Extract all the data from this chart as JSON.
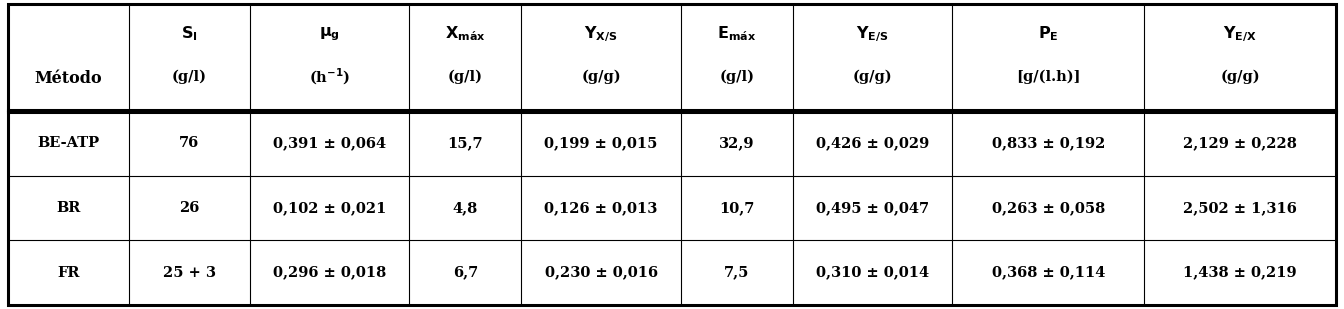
{
  "col_headers_line1_render": [
    "$\\mathbf{S_I}$",
    "$\\mathbf{\\mu_g}$",
    "$\\mathbf{X_{m\\acute{a}x}}$",
    "$\\mathbf{Y_{X/S}}$",
    "$\\mathbf{E_{m\\acute{a}x}}$",
    "$\\mathbf{Y_{E/S}}$",
    "$\\mathbf{P_E}$",
    "$\\mathbf{Y_{E/X}}$"
  ],
  "col_headers_line2": [
    "(g/l)",
    "(h$\\mathbf{^{-1}}$)",
    "(g/l)",
    "(g/g)",
    "(g/l)",
    "(g/g)",
    "[g/(l.h)]",
    "(g/g)"
  ],
  "row_labels": [
    "BE-ATP",
    "BR",
    "FR"
  ],
  "data": [
    [
      "76",
      "0,391 ± 0,064",
      "15,7",
      "0,199 ± 0,015",
      "32,9",
      "0,426 ± 0,029",
      "0,833 ± 0,192",
      "2,129 ± 0,228"
    ],
    [
      "26",
      "0,102 ± 0,021",
      "4,8",
      "0,126 ± 0,013",
      "10,7",
      "0,495 ± 0,047",
      "0,263 ± 0,058",
      "2,502 ± 1,316"
    ],
    [
      "25 + 3",
      "0,296 ± 0,018",
      "6,7",
      "0,230 ± 0,016",
      "7,5",
      "0,310 ± 0,014",
      "0,368 ± 0,114",
      "1,438 ± 0,219"
    ]
  ],
  "background_color": "#ffffff",
  "line_color": "#000000",
  "text_color": "#000000",
  "font_size": 10.5,
  "header_font_size": 11.5
}
